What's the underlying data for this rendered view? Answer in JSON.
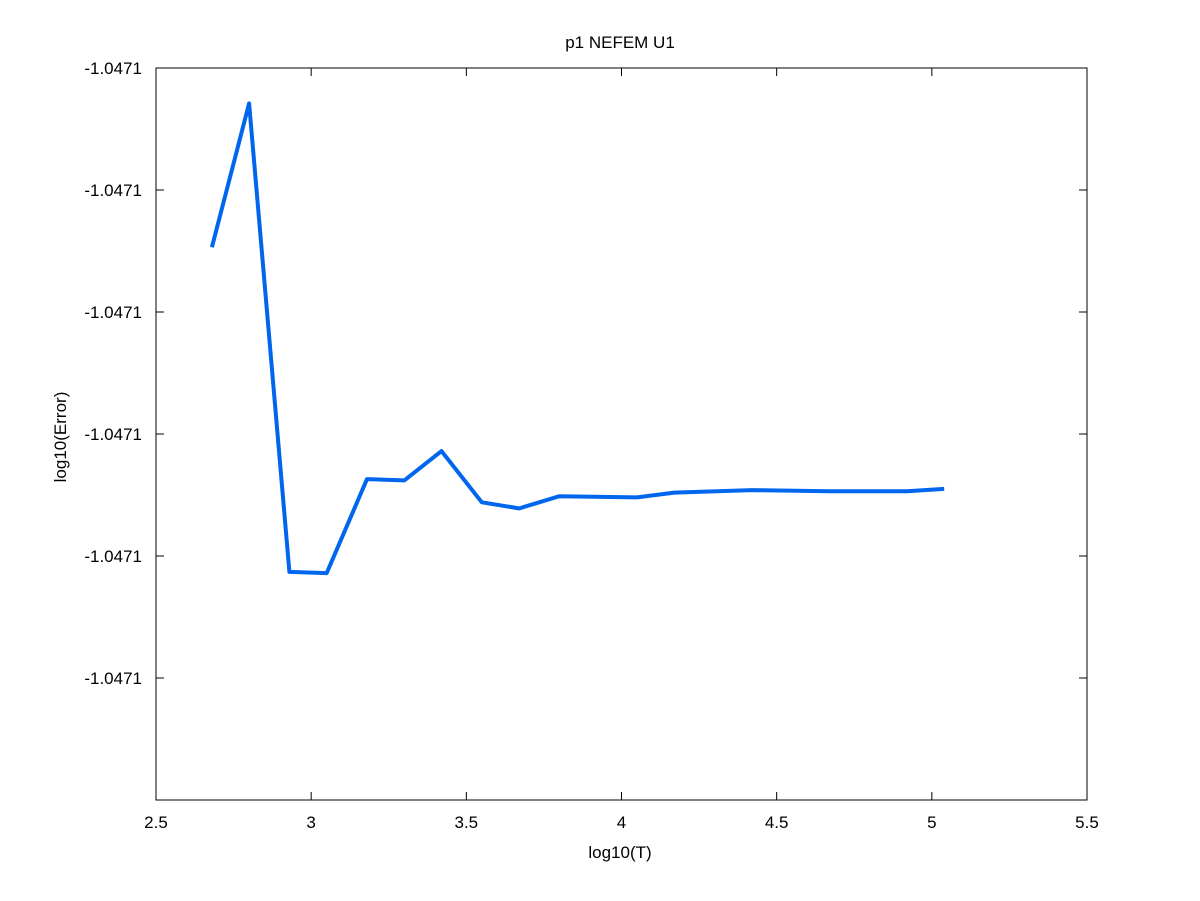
{
  "chart_data": {
    "type": "line",
    "title": "p1 NEFEM U1",
    "xlabel": "log10(T)",
    "ylabel": "log10(Error)",
    "xlim": [
      2.5,
      5.5
    ],
    "ylim": [
      0,
      6
    ],
    "grid": false,
    "legend": "none",
    "x_ticks": [
      {
        "value": 2.5,
        "label": "2.5"
      },
      {
        "value": 3,
        "label": "3"
      },
      {
        "value": 3.5,
        "label": "3.5"
      },
      {
        "value": 4,
        "label": "4"
      },
      {
        "value": 4.5,
        "label": "4.5"
      },
      {
        "value": 5,
        "label": "5"
      },
      {
        "value": 5.5,
        "label": "5.5"
      }
    ],
    "y_ticks": [
      {
        "value": 1,
        "label": "-1.0471"
      },
      {
        "value": 2,
        "label": "-1.0471"
      },
      {
        "value": 3,
        "label": "-1.0471"
      },
      {
        "value": 4,
        "label": "-1.0471"
      },
      {
        "value": 5,
        "label": "-1.0471"
      },
      {
        "value": 6,
        "label": "-1.0471"
      }
    ],
    "y_note": "All y tick labels print the same value; y values are positions relative to the ticks (tick index).",
    "series": [
      {
        "color": "#0066ee",
        "x": [
          2.68,
          2.8,
          2.93,
          3.05,
          3.18,
          3.3,
          3.42,
          3.55,
          3.67,
          3.8,
          4.05,
          4.17,
          4.42,
          4.67,
          4.92,
          5.04
        ],
        "y": [
          4.53,
          5.71,
          1.87,
          1.86,
          2.63,
          2.62,
          2.86,
          2.44,
          2.39,
          2.49,
          2.48,
          2.52,
          2.54,
          2.53,
          2.53,
          2.55
        ]
      }
    ]
  }
}
